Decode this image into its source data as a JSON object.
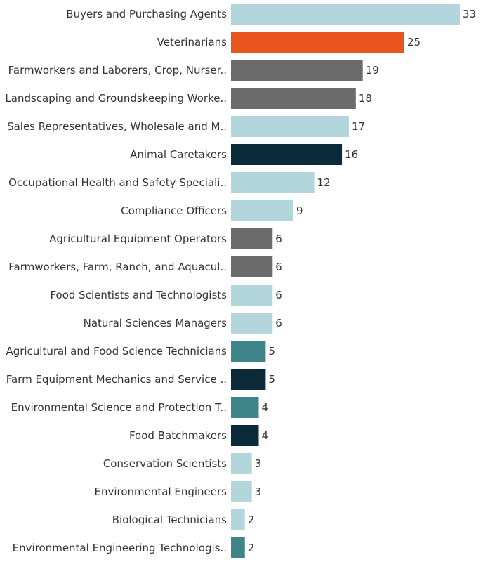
{
  "chart_data": {
    "type": "bar",
    "orientation": "horizontal",
    "title": "",
    "xlabel": "",
    "ylabel": "",
    "grid": false,
    "legend": "none",
    "xlim": [
      0,
      33
    ],
    "categories": [
      "Buyers and Purchasing Agents",
      "Veterinarians",
      "Farmworkers and Laborers, Crop, Nurser..",
      "Landscaping and Groundskeeping Worke..",
      "Sales Representatives, Wholesale and M..",
      "Animal Caretakers",
      "Occupational Health and Safety Speciali..",
      "Compliance Officers",
      "Agricultural Equipment Operators",
      "Farmworkers, Farm, Ranch, and Aquacul..",
      "Food Scientists and Technologists",
      "Natural Sciences Managers",
      "Agricultural and Food Science Technicians",
      "Farm Equipment Mechanics and Service ..",
      "Environmental Science and Protection T..",
      "Food Batchmakers",
      "Conservation Scientists",
      "Environmental Engineers",
      "Biological Technicians",
      "Environmental Engineering Technologis.."
    ],
    "values": [
      33,
      25,
      19,
      18,
      17,
      16,
      12,
      9,
      6,
      6,
      6,
      6,
      5,
      5,
      4,
      4,
      3,
      3,
      2,
      2
    ],
    "colors": [
      "#b3d5dc",
      "#e8561e",
      "#6b6b6b",
      "#6b6b6b",
      "#b3d5dc",
      "#0b2b3a",
      "#b3d5dc",
      "#b3d5dc",
      "#6b6b6b",
      "#6b6b6b",
      "#b3d5dc",
      "#b3d5dc",
      "#3f8489",
      "#0b2b3a",
      "#3f8489",
      "#0b2b3a",
      "#b3d5dc",
      "#b3d5dc",
      "#b3d5dc",
      "#3f8489"
    ]
  }
}
